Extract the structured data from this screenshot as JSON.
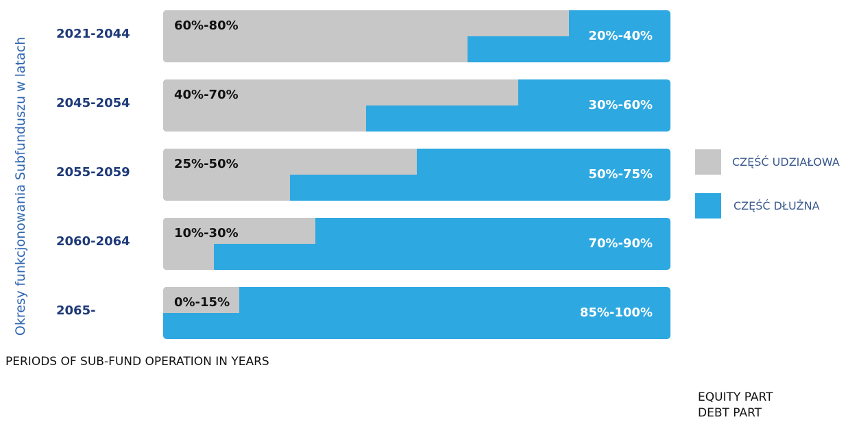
{
  "chart_data": {
    "type": "bar",
    "title": "",
    "ylabel": "Okresy funkcjonowania Subfunduszu w latach",
    "categories": [
      "2021-2044",
      "2045-2054",
      "2055-2059",
      "2060-2064",
      "2065-"
    ],
    "series": [
      {
        "name": "CZĘŚĆ UDZIAŁOWA",
        "color": "#c7c7c7",
        "min": [
          60,
          40,
          25,
          10,
          0
        ],
        "max": [
          80,
          70,
          50,
          30,
          15
        ],
        "labels": [
          "60%-80%",
          "40%-70%",
          "25%-50%",
          "10%-30%",
          "0%-15%"
        ]
      },
      {
        "name": "CZĘŚĆ DŁUŻNA",
        "color": "#2ea8e0",
        "min": [
          20,
          30,
          50,
          70,
          85
        ],
        "max": [
          40,
          60,
          75,
          90,
          100
        ],
        "labels": [
          "20%-40%",
          "30%-60%",
          "50%-75%",
          "70%-90%",
          "85%-100%"
        ]
      }
    ],
    "xlim": [
      0,
      100
    ],
    "legend": [
      "CZĘŚĆ UDZIAŁOWA",
      "CZĘŚĆ DŁUŻNA"
    ],
    "legend_position": "right"
  },
  "captions": {
    "periods": "PERIODS OF SUB-FUND OPERATION IN YEARS",
    "equity": "EQUITY PART",
    "debt": "DEBT PART"
  }
}
